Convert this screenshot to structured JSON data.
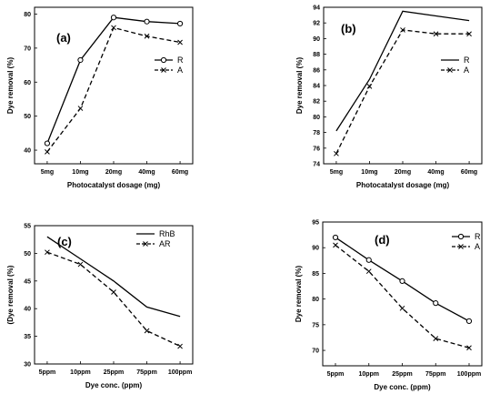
{
  "chart_data": [
    {
      "id": "a",
      "type": "line",
      "panel_label": "(a)",
      "xlabel": "Photocatalyst dosage (mg)",
      "ylabel": "Dye removal (%)",
      "categories": [
        "5mg",
        "10mg",
        "20mg",
        "40mg",
        "60mg"
      ],
      "ylim": [
        36,
        82
      ],
      "yticks": [
        40,
        50,
        60,
        70,
        80
      ],
      "legend_position": "right",
      "series": [
        {
          "name": "R",
          "values": [
            42,
            66.5,
            79,
            77.8,
            77.2
          ],
          "style": "solid",
          "marker": "circle"
        },
        {
          "name": "A",
          "values": [
            39.5,
            52.3,
            76,
            73.5,
            71.7
          ],
          "style": "dashed",
          "marker": "x"
        }
      ]
    },
    {
      "id": "b",
      "type": "line",
      "panel_label": "(b)",
      "xlabel": "Photocatalyst dosage (mg)",
      "ylabel": "Dye removal (%)",
      "categories": [
        "5mg",
        "10mg",
        "20mg",
        "40mg",
        "60mg"
      ],
      "ylim": [
        74,
        94
      ],
      "yticks": [
        74,
        76,
        78,
        80,
        82,
        84,
        86,
        88,
        90,
        92,
        94
      ],
      "legend_position": "right",
      "series": [
        {
          "name": "R",
          "values": [
            78.2,
            84.8,
            93.5,
            92.9,
            92.3
          ],
          "style": "solid",
          "marker": "none"
        },
        {
          "name": "A",
          "values": [
            75.3,
            83.9,
            91.1,
            90.6,
            90.6
          ],
          "style": "dashed",
          "marker": "x"
        }
      ]
    },
    {
      "id": "c",
      "type": "line",
      "panel_label": "(c)",
      "xlabel": "Dye conc. (ppm)",
      "ylabel": "(Dye removal (%)",
      "categories": [
        "5ppm",
        "10ppm",
        "25ppm",
        "75ppm",
        "100ppm"
      ],
      "ylim": [
        30,
        55
      ],
      "yticks": [
        30,
        35,
        40,
        45,
        50,
        55
      ],
      "legend_position": "top-right",
      "series": [
        {
          "name": "RhB",
          "values": [
            53,
            49,
            45,
            40.3,
            38.6
          ],
          "style": "solid",
          "marker": "none"
        },
        {
          "name": "AR",
          "values": [
            50.2,
            48,
            43,
            36,
            33.2
          ],
          "style": "dashed",
          "marker": "x"
        }
      ]
    },
    {
      "id": "d",
      "type": "line",
      "panel_label": "(d)",
      "xlabel": "Dye conc. (ppm)",
      "ylabel": "Dye removal (%)",
      "categories": [
        "5ppm",
        "10ppm",
        "25ppm",
        "75ppm",
        "100ppm"
      ],
      "ylim": [
        67,
        95
      ],
      "yticks": [
        70,
        75,
        80,
        85,
        90,
        95
      ],
      "legend_position": "top-right",
      "series": [
        {
          "name": "R",
          "values": [
            92,
            87.6,
            83.5,
            79.2,
            75.7
          ],
          "style": "solid",
          "marker": "circle"
        },
        {
          "name": "A",
          "values": [
            90.5,
            85.4,
            78.2,
            72.3,
            70.5
          ],
          "style": "dashed",
          "marker": "x"
        }
      ]
    }
  ]
}
